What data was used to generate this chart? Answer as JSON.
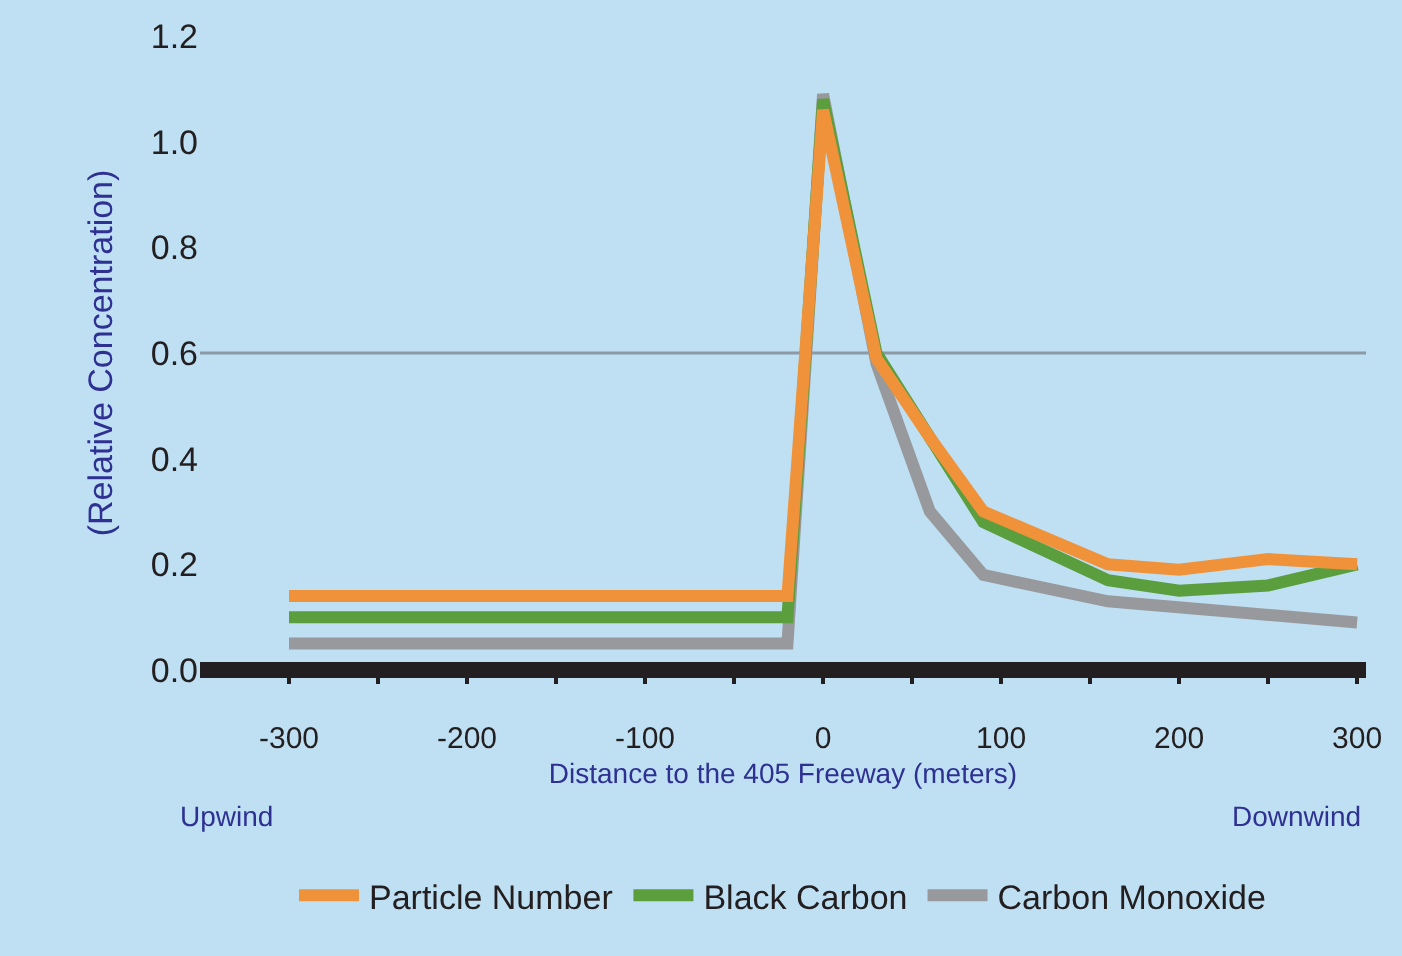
{
  "chart_data": {
    "type": "line",
    "xlabel": "Distance to the 405 Freeway (meters)",
    "ylabel": "(Relative Concentration)",
    "xlim": [
      -350,
      305
    ],
    "xticks": [
      -300,
      {
        "value": -250,
        "label": null
      },
      -200,
      {
        "value": -150,
        "label": null
      },
      -100,
      {
        "value": -50,
        "label": null
      },
      0,
      {
        "value": 50,
        "label": null
      },
      100,
      {
        "value": 150,
        "label": null
      },
      200,
      {
        "value": 250,
        "label": null
      },
      300
    ],
    "ylim": [
      0,
      1.2
    ],
    "yticks": [
      {
        "value": 0,
        "label": "0.0"
      },
      0.2,
      0.4,
      0.6,
      0.8,
      {
        "value": 1,
        "label": "1.0"
      },
      1.2
    ],
    "grid": false,
    "legend": "bottom",
    "line_style": "solid",
    "ref_lines": [
      {
        "axis": "y",
        "value": 0.6,
        "label": null,
        "color": "#8c9aa6"
      }
    ],
    "annotations": [
      "Upwind",
      "Downwind"
    ],
    "series": [
      {
        "name": "Carbon Monoxide",
        "color": "#98999c",
        "x": [
          -300,
          -20,
          0,
          30,
          60,
          90,
          160,
          300
        ],
        "values": [
          0.05,
          0.05,
          1.09,
          0.58,
          0.3,
          0.18,
          0.13,
          0.09
        ]
      },
      {
        "name": "Black Carbon",
        "color": "#5a9e3e",
        "x": [
          -300,
          -20,
          0,
          30,
          90,
          160,
          200,
          250,
          300
        ],
        "values": [
          0.1,
          0.1,
          1.08,
          0.6,
          0.28,
          0.17,
          0.15,
          0.16,
          0.2
        ]
      },
      {
        "name": "Particle Number",
        "color": "#f0923a",
        "x": [
          -300,
          -20,
          0,
          30,
          60,
          90,
          160,
          200,
          250,
          300
        ],
        "values": [
          0.14,
          0.14,
          1.06,
          0.59,
          0.44,
          0.3,
          0.2,
          0.19,
          0.21,
          0.2
        ]
      }
    ]
  }
}
